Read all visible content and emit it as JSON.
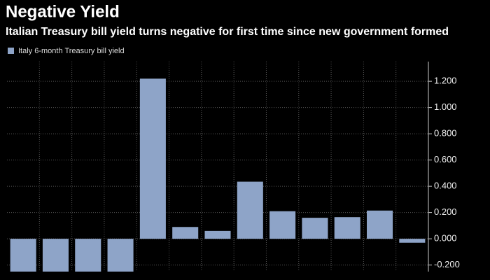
{
  "chart_data": {
    "type": "bar",
    "title": "Negative Yield",
    "subtitle": "Italian Treasury bill yield turns negative for first time since new government formed",
    "categories": [
      null,
      null,
      null,
      null,
      null,
      null,
      null,
      null,
      null,
      null,
      null,
      null,
      null
    ],
    "series": [
      {
        "name": "Italy 6-month Treasury bill yield",
        "color": "#8ea4c8",
        "values": [
          -0.25,
          -0.25,
          -0.25,
          -0.25,
          1.22,
          0.09,
          0.06,
          0.435,
          0.21,
          0.16,
          0.165,
          0.215,
          -0.03
        ]
      }
    ],
    "ylim": [
      -0.25,
      1.35
    ],
    "yticks": [
      {
        "value": -0.2,
        "label": "-0.200"
      },
      {
        "value": 0,
        "label": "0.000"
      },
      {
        "value": 0.2,
        "label": "0.200"
      },
      {
        "value": 0.4,
        "label": "0.400"
      },
      {
        "value": 0.6,
        "label": "0.600"
      },
      {
        "value": 0.8,
        "label": "0.800"
      },
      {
        "value": 1.0,
        "label": "1.000"
      },
      {
        "value": 1.2,
        "label": "1.200"
      }
    ],
    "grid": true,
    "y_axis_side": "right"
  }
}
